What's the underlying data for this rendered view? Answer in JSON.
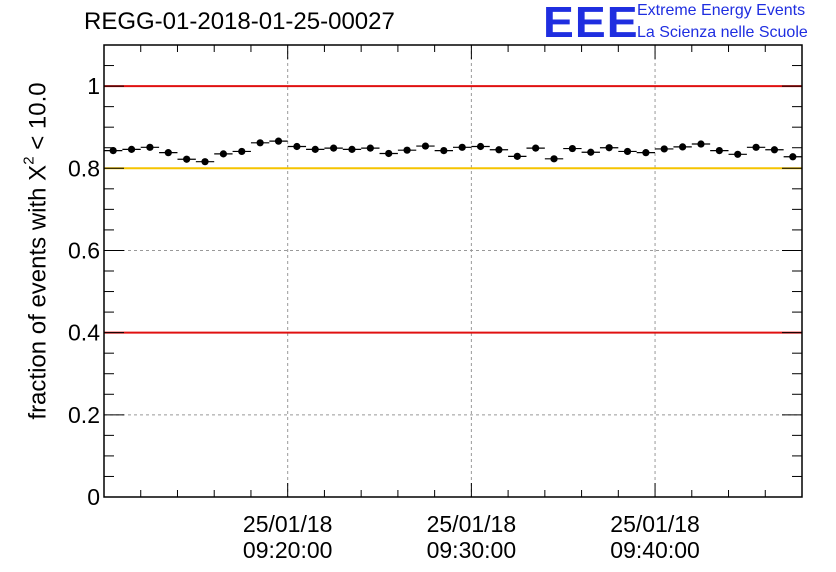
{
  "title": "REGG-01-2018-01-25-00027",
  "logo": {
    "acronym": "EEE",
    "line1": "Extreme Energy Events",
    "line2": "La Scienza nelle Scuole",
    "color": "#1f2ee0"
  },
  "chart_data": {
    "type": "scatter",
    "title": "REGG-01-2018-01-25-00027",
    "ylabel": "fraction of events with X^2 < 10.0",
    "ylabel_parts": {
      "prefix": "fraction of events with X",
      "sup": "2",
      "suffix": " < 10.0"
    },
    "xlabel": "",
    "x_range_minutes": [
      0,
      38
    ],
    "ylim": [
      0,
      1.1
    ],
    "y_ticks": [
      {
        "value": 0,
        "label": "0"
      },
      {
        "value": 0.2,
        "label": "0.2"
      },
      {
        "value": 0.4,
        "label": "0.4"
      },
      {
        "value": 0.6,
        "label": "0.6"
      },
      {
        "value": 0.8,
        "label": "0.8"
      },
      {
        "value": 1.0,
        "label": "1"
      }
    ],
    "x_ticks": [
      {
        "minute": 10,
        "date": "25/01/18",
        "time": "09:20:00"
      },
      {
        "minute": 20,
        "date": "25/01/18",
        "time": "09:30:00"
      },
      {
        "minute": 30,
        "date": "25/01/18",
        "time": "09:40:00"
      }
    ],
    "grid": true,
    "reference_lines": [
      {
        "value": 1.0,
        "color": "#e01010"
      },
      {
        "value": 0.8,
        "color": "#f5c400"
      },
      {
        "value": 0.4,
        "color": "#e01010"
      }
    ],
    "series": [
      {
        "name": "fraction",
        "bin_width_minutes": 1,
        "x_minutes": [
          0.5,
          1.5,
          2.5,
          3.5,
          4.5,
          5.5,
          6.5,
          7.5,
          8.5,
          9.5,
          10.5,
          11.5,
          12.5,
          13.5,
          14.5,
          15.5,
          16.5,
          17.5,
          18.5,
          19.5,
          20.5,
          21.5,
          22.5,
          23.5,
          24.5,
          25.5,
          26.5,
          27.5,
          28.5,
          29.5,
          30.5,
          31.5,
          32.5,
          33.5,
          34.5,
          35.5,
          36.5,
          37.5
        ],
        "values": [
          0.843,
          0.846,
          0.851,
          0.838,
          0.822,
          0.816,
          0.835,
          0.841,
          0.862,
          0.866,
          0.853,
          0.846,
          0.849,
          0.846,
          0.849,
          0.836,
          0.844,
          0.854,
          0.843,
          0.851,
          0.853,
          0.845,
          0.829,
          0.849,
          0.823,
          0.848,
          0.839,
          0.85,
          0.841,
          0.838,
          0.847,
          0.852,
          0.859,
          0.843,
          0.834,
          0.851,
          0.845,
          0.828
        ],
        "error": 0.006
      }
    ]
  }
}
